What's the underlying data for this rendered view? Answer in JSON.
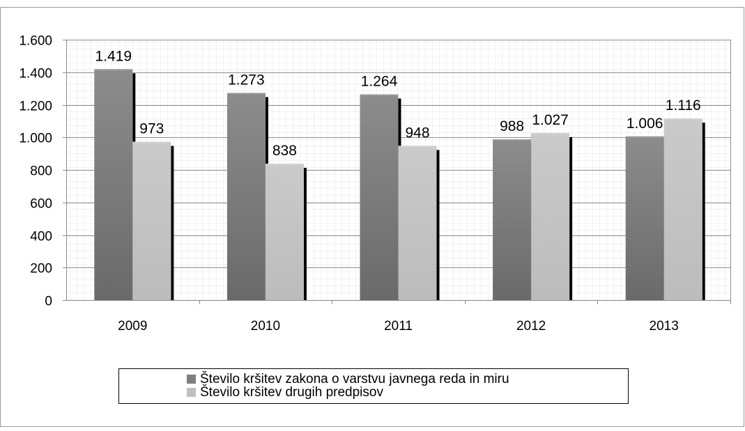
{
  "chart_data": {
    "type": "bar",
    "title": "",
    "xlabel": "",
    "ylabel": "",
    "categories": [
      "2009",
      "2010",
      "2011",
      "2012",
      "2013"
    ],
    "series": [
      {
        "name": "Število kršitev zakona o varstvu javnega reda in miru",
        "values": [
          1419,
          1273,
          1264,
          988,
          1006
        ],
        "labels": [
          "1.419",
          "1.273",
          "1.264",
          "988",
          "1.006"
        ],
        "color": "#7f7f7f"
      },
      {
        "name": "Število kršitev drugih predpisov",
        "values": [
          973,
          838,
          948,
          1027,
          1116
        ],
        "labels": [
          "973",
          "838",
          "948",
          "1.027",
          "1.116"
        ],
        "color": "#c0c0c0"
      }
    ],
    "ylim": [
      0,
      1600
    ],
    "yticks": [
      0,
      200,
      400,
      600,
      800,
      1000,
      1200,
      1400,
      1600
    ],
    "ytick_labels": [
      "0",
      "200",
      "400",
      "600",
      "800",
      "1.000",
      "1.200",
      "1.400",
      "1.600"
    ],
    "grid": true,
    "legend_position": "bottom"
  }
}
